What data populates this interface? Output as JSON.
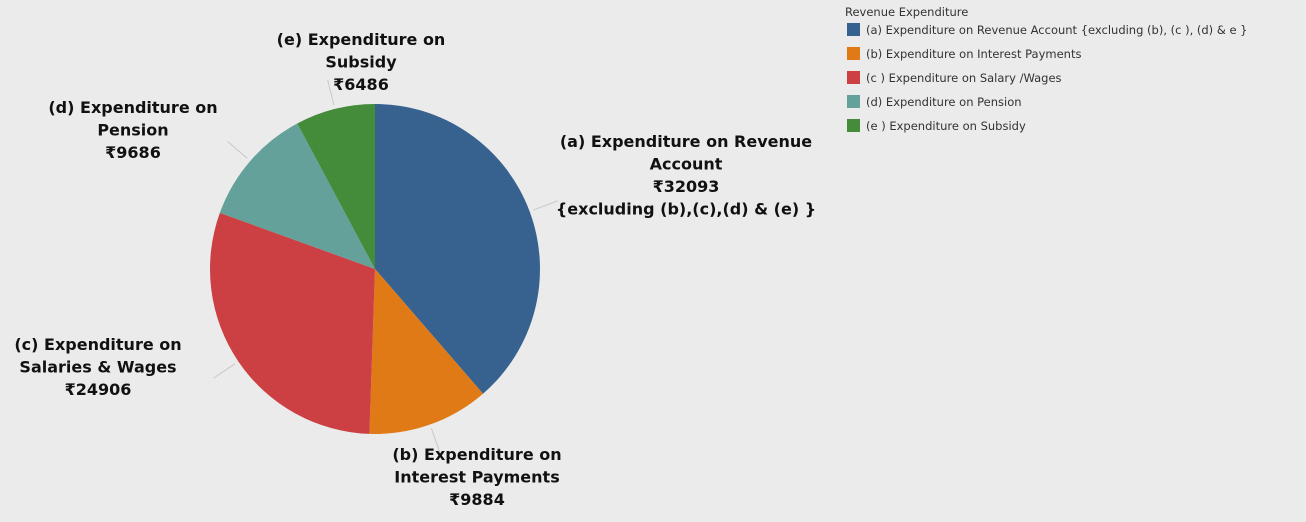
{
  "chart_data": {
    "type": "pie",
    "categories": [
      "(a) Expenditure on Revenue Account",
      "(b) Expenditure on Interest Payments",
      "(c) Expenditure on Salaries & Wages",
      "(d) Expenditure on Pension",
      "(e) Expenditure on Subsidy"
    ],
    "values": [
      32093,
      9884,
      24906,
      9686,
      6486
    ],
    "value_labels": [
      "₹32093",
      "₹9884",
      "₹24906",
      "₹9686",
      "₹6486"
    ],
    "annotation": "{excluding (b),(c),(d) & (e) }",
    "colors": [
      "#37628f",
      "#e07a16",
      "#cc3f43",
      "#63a19a",
      "#448b3a"
    ],
    "legend": {
      "title": "Revenue Expenditure",
      "position": "top-right",
      "labels": [
        "(a) Expenditure on Revenue Account {excluding (b), (c ), (d) & e }",
        "(b) Expenditure on Interest Payments",
        "(c ) Expenditure on Salary /Wages",
        "(d) Expenditure on Pension",
        "(e )  Expenditure on Subsidy"
      ]
    }
  }
}
